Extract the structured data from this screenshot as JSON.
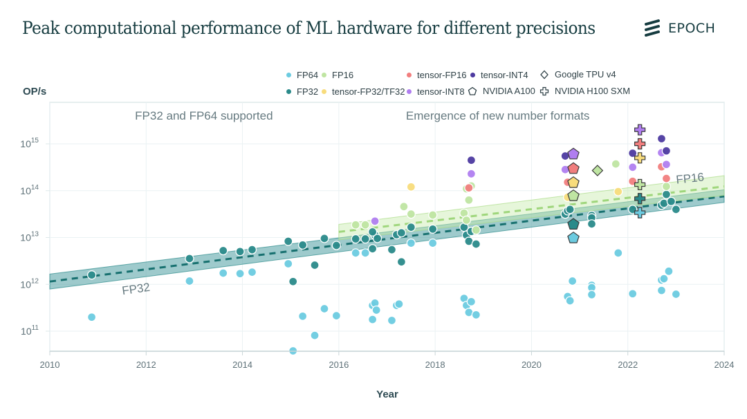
{
  "header": {
    "title": "Peak computational performance of ML hardware for different precisions",
    "brand": "EPOCH"
  },
  "legend": [
    {
      "label": "FP64",
      "kind": "dot",
      "color": "#6ccbe0"
    },
    {
      "label": "FP32",
      "kind": "dot",
      "color": "#2a8a8a"
    },
    {
      "label": "FP16",
      "kind": "dot",
      "color": "#bfe5a2"
    },
    {
      "label": "tensor-FP32/TF32",
      "kind": "dot",
      "color": "#f8dc7c"
    },
    {
      "label": "tensor-FP16",
      "kind": "dot",
      "color": "#f17e7e"
    },
    {
      "label": "tensor-INT8",
      "kind": "dot",
      "color": "#b07ef0"
    },
    {
      "label": "tensor-INT4",
      "kind": "dot",
      "color": "#4d3aa0"
    },
    {
      "label": "NVIDIA A100",
      "kind": "pentagon",
      "color": "#ffffff"
    },
    {
      "label": "Google TPU v4",
      "kind": "diamond",
      "color": "#ffffff"
    },
    {
      "label": "NVIDIA H100 SXM",
      "kind": "cross",
      "color": "#ffffff"
    }
  ],
  "chart_data": {
    "type": "scatter",
    "title": "Peak computational performance of ML hardware for different precisions",
    "xlabel": "Year",
    "ylabel": "OP/s",
    "xlim": [
      2010,
      2024
    ],
    "ylim_log10": [
      10.57,
      15.88
    ],
    "y_scale": "log",
    "x_ticks": [
      "2010",
      "2012",
      "2014",
      "2016",
      "2018",
      "2020",
      "2022",
      "2024"
    ],
    "x_tick_values": [
      2010,
      2012,
      2014,
      2016,
      2018,
      2020,
      2022,
      2024
    ],
    "y_ticks": [
      {
        "base": "10",
        "exp": "11",
        "log": 11
      },
      {
        "base": "10",
        "exp": "12",
        "log": 12
      },
      {
        "base": "10",
        "exp": "13",
        "log": 13
      },
      {
        "base": "10",
        "exp": "14",
        "log": 14
      },
      {
        "base": "10",
        "exp": "15",
        "log": 15
      }
    ],
    "grid": true,
    "legend_position": "top",
    "annotations": [
      {
        "text": "FP32 and FP64 supported",
        "x": 2013.2,
        "ylog": 15.52
      },
      {
        "text": "Emergence of new number formats",
        "x": 2019.3,
        "ylog": 15.52
      },
      {
        "text": "FP32",
        "x": 2011.8,
        "ylog": 11.82,
        "rotate": -8
      },
      {
        "text": "FP16",
        "x": 2023.3,
        "ylog": 14.18,
        "rotate": -6
      }
    ],
    "trends": [
      {
        "name": "FP32",
        "color": "#2a8a8a",
        "band_color": "#4e9fa3",
        "x_start": 2010,
        "x_end": 2024,
        "center_log": [
          12.06,
          13.88
        ],
        "lower_log": [
          11.9,
          13.75
        ],
        "upper_log": [
          12.22,
          14.02
        ]
      },
      {
        "name": "FP16",
        "color": "#a9dc86",
        "band_color": "#c7ecae",
        "x_start": 2016,
        "x_end": 2024,
        "center_log": [
          13.12,
          14.09
        ],
        "lower_log": [
          12.95,
          13.9
        ],
        "upper_log": [
          13.28,
          14.32
        ]
      }
    ],
    "series": [
      {
        "name": "FP64",
        "color": "#6ccbe0",
        "points": [
          [
            2010.87,
            11.3
          ],
          [
            2012.9,
            12.07
          ],
          [
            2013.6,
            12.24
          ],
          [
            2013.95,
            12.23
          ],
          [
            2014.2,
            12.26
          ],
          [
            2014.95,
            12.44
          ],
          [
            2015.25,
            11.32
          ],
          [
            2015.05,
            10.58
          ],
          [
            2015.5,
            10.91
          ],
          [
            2015.7,
            11.48
          ],
          [
            2015.95,
            11.33
          ],
          [
            2016.35,
            12.67
          ],
          [
            2016.55,
            12.67
          ],
          [
            2016.7,
            11.55
          ],
          [
            2016.75,
            11.6
          ],
          [
            2016.78,
            11.45
          ],
          [
            2016.7,
            11.25
          ],
          [
            2017.1,
            11.23
          ],
          [
            2017.2,
            11.55
          ],
          [
            2017.25,
            11.58
          ],
          [
            2017.5,
            12.88
          ],
          [
            2017.95,
            12.88
          ],
          [
            2018.6,
            11.7
          ],
          [
            2018.65,
            11.55
          ],
          [
            2018.75,
            11.63
          ],
          [
            2018.7,
            11.4
          ],
          [
            2018.85,
            11.35
          ],
          [
            2020.75,
            11.74
          ],
          [
            2020.8,
            11.65
          ],
          [
            2020.85,
            12.07
          ],
          [
            2021.25,
            11.98
          ],
          [
            2021.25,
            11.93
          ],
          [
            2021.25,
            11.78
          ],
          [
            2021.8,
            12.67
          ],
          [
            2022.1,
            11.8
          ],
          [
            2022.7,
            12.09
          ],
          [
            2022.75,
            12.12
          ],
          [
            2022.85,
            12.28
          ],
          [
            2022.7,
            11.87
          ],
          [
            2023.0,
            11.79
          ]
        ]
      },
      {
        "name": "FP32",
        "color": "#2a8a8a",
        "points": [
          [
            2010.87,
            12.2
          ],
          [
            2012.9,
            12.55
          ],
          [
            2013.6,
            12.72
          ],
          [
            2013.95,
            12.7
          ],
          [
            2014.2,
            12.74
          ],
          [
            2014.95,
            12.92
          ],
          [
            2015.05,
            12.06
          ],
          [
            2015.25,
            12.84
          ],
          [
            2015.5,
            12.41
          ],
          [
            2015.7,
            12.98
          ],
          [
            2015.95,
            12.83
          ],
          [
            2016.35,
            12.97
          ],
          [
            2016.55,
            12.97
          ],
          [
            2016.7,
            12.76
          ],
          [
            2016.75,
            13.05
          ],
          [
            2016.8,
            12.98
          ],
          [
            2016.7,
            13.12
          ],
          [
            2017.1,
            12.74
          ],
          [
            2017.2,
            13.06
          ],
          [
            2017.3,
            13.1
          ],
          [
            2017.3,
            12.48
          ],
          [
            2017.5,
            13.22
          ],
          [
            2017.95,
            13.18
          ],
          [
            2018.6,
            13.22
          ],
          [
            2018.65,
            13.05
          ],
          [
            2018.75,
            13.13
          ],
          [
            2018.7,
            12.92
          ],
          [
            2018.85,
            12.86
          ],
          [
            2020.7,
            13.5
          ],
          [
            2020.75,
            13.57
          ],
          [
            2020.8,
            13.6
          ],
          [
            2021.25,
            13.47
          ],
          [
            2021.25,
            13.42
          ],
          [
            2021.25,
            13.29
          ],
          [
            2022.1,
            13.6
          ],
          [
            2022.7,
            13.69
          ],
          [
            2022.75,
            13.73
          ],
          [
            2022.8,
            13.92
          ],
          [
            2022.9,
            13.77
          ],
          [
            2023.0,
            13.6
          ]
        ]
      },
      {
        "name": "FP16",
        "color": "#bfe5a2",
        "points": [
          [
            2016.35,
            13.27
          ],
          [
            2016.55,
            13.27
          ],
          [
            2017.35,
            13.66
          ],
          [
            2017.5,
            13.5
          ],
          [
            2017.95,
            13.48
          ],
          [
            2018.6,
            13.52
          ],
          [
            2018.65,
            13.37
          ],
          [
            2018.7,
            13.8
          ],
          [
            2018.75,
            14.1
          ],
          [
            2018.65,
            14.04
          ],
          [
            2018.85,
            13.16
          ],
          [
            2021.75,
            14.57
          ],
          [
            2022.8,
            14.09
          ],
          [
            2020.85,
            13.88
          ]
        ]
      },
      {
        "name": "tensor-FP32/TF32",
        "color": "#f8dc7c",
        "points": [
          [
            2017.5,
            14.08
          ],
          [
            2020.75,
            13.86
          ],
          [
            2021.8,
            13.98
          ]
        ]
      },
      {
        "name": "tensor-FP16",
        "color": "#f17e7e",
        "points": [
          [
            2018.7,
            14.06
          ],
          [
            2020.75,
            14.18
          ],
          [
            2022.1,
            14.2
          ],
          [
            2022.7,
            14.51
          ],
          [
            2022.8,
            14.26
          ]
        ]
      },
      {
        "name": "tensor-INT8",
        "color": "#b07ef0",
        "points": [
          [
            2016.75,
            13.35
          ],
          [
            2018.75,
            14.36
          ],
          [
            2020.7,
            14.45
          ],
          [
            2022.1,
            14.5
          ],
          [
            2022.7,
            14.81
          ],
          [
            2022.8,
            14.56
          ]
        ]
      },
      {
        "name": "tensor-INT4",
        "color": "#4d3aa0",
        "points": [
          [
            2018.75,
            14.65
          ],
          [
            2020.7,
            14.74
          ],
          [
            2022.1,
            14.8
          ],
          [
            2022.7,
            15.11
          ],
          [
            2022.8,
            14.85
          ]
        ]
      }
    ],
    "highlight_series": [
      {
        "name": "NVIDIA A100",
        "marker": "pentagon",
        "points": [
          {
            "x": 2020.87,
            "ylog": 14.78,
            "color": "#b07ef0"
          },
          {
            "x": 2020.87,
            "ylog": 14.47,
            "color": "#f17e7e"
          },
          {
            "x": 2020.87,
            "ylog": 14.17,
            "color": "#f8dc7c"
          },
          {
            "x": 2020.87,
            "ylog": 13.89,
            "color": "#bfe5a2"
          },
          {
            "x": 2020.87,
            "ylog": 13.28,
            "color": "#2a8a8a"
          },
          {
            "x": 2020.87,
            "ylog": 12.99,
            "color": "#6ccbe0"
          }
        ]
      },
      {
        "name": "Google TPU v4",
        "marker": "diamond",
        "points": [
          {
            "x": 2021.37,
            "ylog": 14.43,
            "color": "#bfe5a2"
          }
        ]
      },
      {
        "name": "NVIDIA H100 SXM",
        "marker": "cross",
        "points": [
          {
            "x": 2022.25,
            "ylog": 15.3,
            "color": "#b07ef0"
          },
          {
            "x": 2022.25,
            "ylog": 15.0,
            "color": "#f17e7e"
          },
          {
            "x": 2022.25,
            "ylog": 14.7,
            "color": "#f8dc7c"
          },
          {
            "x": 2022.25,
            "ylog": 14.13,
            "color": "#bfe5a2"
          },
          {
            "x": 2022.25,
            "ylog": 13.83,
            "color": "#2a8a8a"
          },
          {
            "x": 2022.25,
            "ylog": 13.53,
            "color": "#6ccbe0"
          }
        ]
      }
    ]
  }
}
